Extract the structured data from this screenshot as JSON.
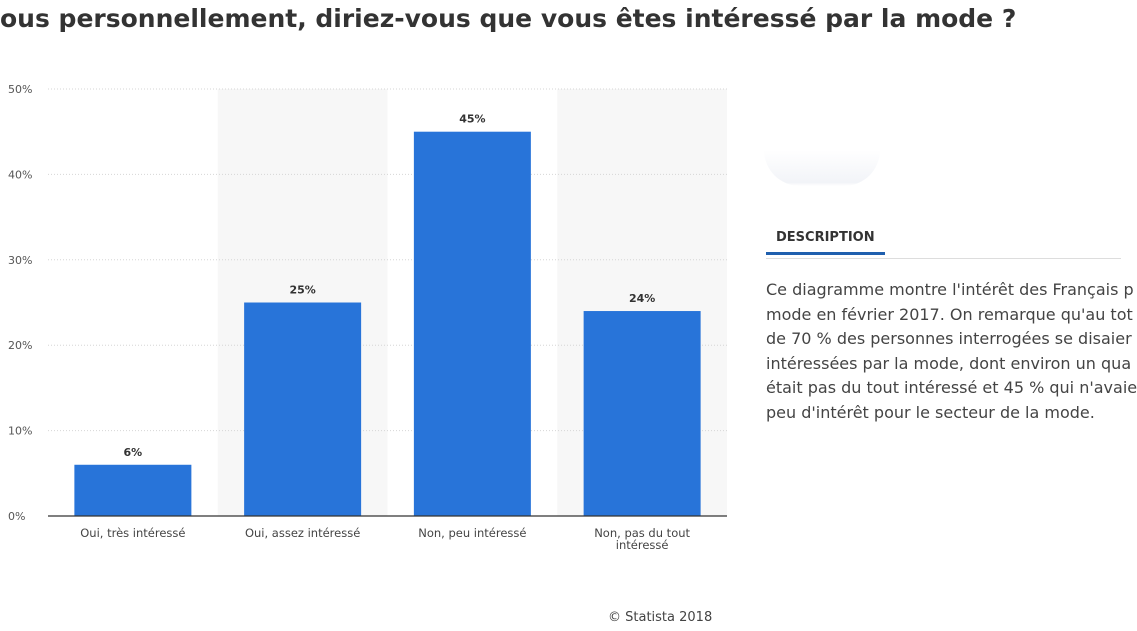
{
  "header": {
    "title": "ous personnellement, diriez-vous que vous êtes intéressé par la mode ?"
  },
  "chart_data": {
    "type": "bar",
    "title": "ous personnellement, diriez-vous que vous êtes intéressé par la mode ?",
    "categories": [
      "Oui, très intéressé",
      "Oui, assez intéressé",
      "Non, peu intéressé",
      "Non, pas du tout intéressé"
    ],
    "values": [
      6,
      25,
      45,
      24
    ],
    "value_labels": [
      "6%",
      "25%",
      "45%",
      "24%"
    ],
    "y_ticks": [
      "0%",
      "10%",
      "20%",
      "30%",
      "40%",
      "50%"
    ],
    "ylim": [
      0,
      50
    ],
    "xlabel": "",
    "ylabel": "",
    "grid": true,
    "bar_color": "#2874d9",
    "alt_band_color": "#f7f7f7"
  },
  "source": "© Statista 2018",
  "description": {
    "tab_label": "DESCRIPTION",
    "lines": [
      "Ce diagramme montre l'intérêt des Français p",
      "mode en février 2017. On remarque qu'au tot",
      "de 70 % des personnes interrogées se disaier",
      "intéressées par la mode, dont environ un qua",
      "était pas du tout intéressé et 45 % qui n'avaie",
      "peu d'intérêt pour le secteur de la mode."
    ]
  }
}
